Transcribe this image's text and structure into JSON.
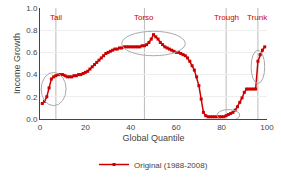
{
  "chart_data": {
    "type": "line",
    "xlabel": "Global Quantile",
    "ylabel": "Income Growth",
    "x": [
      1,
      2,
      3,
      4,
      5,
      6,
      7,
      8,
      9,
      10,
      11,
      12,
      13,
      14,
      15,
      16,
      17,
      18,
      19,
      20,
      21,
      22,
      23,
      24,
      25,
      26,
      27,
      28,
      29,
      30,
      31,
      32,
      33,
      34,
      35,
      36,
      37,
      38,
      39,
      40,
      41,
      42,
      43,
      44,
      45,
      46,
      47,
      48,
      49,
      50,
      51,
      52,
      53,
      54,
      55,
      56,
      57,
      58,
      59,
      60,
      61,
      62,
      63,
      64,
      65,
      66,
      67,
      68,
      69,
      70,
      71,
      72,
      73,
      74,
      75,
      76,
      77,
      78,
      79,
      80,
      81,
      82,
      83,
      84,
      85,
      86,
      87,
      88,
      89,
      90,
      91,
      92,
      93,
      94,
      95,
      96,
      97,
      98,
      99
    ],
    "series": [
      {
        "name": "Original (1988-2008)",
        "color": "#cc0000",
        "marker": "square",
        "values": [
          0.14,
          0.16,
          0.2,
          0.28,
          0.36,
          0.38,
          0.39,
          0.4,
          0.4,
          0.4,
          0.39,
          0.38,
          0.38,
          0.38,
          0.39,
          0.39,
          0.4,
          0.4,
          0.41,
          0.42,
          0.43,
          0.45,
          0.47,
          0.49,
          0.51,
          0.53,
          0.55,
          0.57,
          0.59,
          0.6,
          0.61,
          0.62,
          0.63,
          0.63,
          0.64,
          0.64,
          0.65,
          0.65,
          0.65,
          0.65,
          0.65,
          0.65,
          0.65,
          0.65,
          0.66,
          0.66,
          0.67,
          0.69,
          0.72,
          0.76,
          0.74,
          0.72,
          0.69,
          0.67,
          0.65,
          0.64,
          0.63,
          0.62,
          0.61,
          0.6,
          0.6,
          0.59,
          0.58,
          0.57,
          0.55,
          0.52,
          0.48,
          0.44,
          0.38,
          0.3,
          0.18,
          0.06,
          0.03,
          0.02,
          0.02,
          0.02,
          0.02,
          0.02,
          0.02,
          0.02,
          0.02,
          0.03,
          0.04,
          0.05,
          0.06,
          0.08,
          0.11,
          0.15,
          0.19,
          0.24,
          0.27,
          0.27,
          0.27,
          0.27,
          0.27,
          0.52,
          0.58,
          0.62,
          0.65
        ]
      }
    ],
    "xlim": [
      0,
      100
    ],
    "ylim": [
      0.0,
      1.0
    ],
    "xticks": [
      0,
      20,
      40,
      60,
      80,
      100
    ],
    "yticks": [
      {
        "value": 0,
        "label": "0.0"
      },
      0.2,
      0.4,
      0.6,
      0.8,
      {
        "value": 1,
        "label": "1.0"
      }
    ],
    "grid": "y",
    "legend": "bottom",
    "annotations": [
      {
        "text": "Tail",
        "x": 7,
        "y": 0.975,
        "color": "#cc0000"
      },
      {
        "text": "Torso",
        "x": 46,
        "y": 0.975,
        "color": "#cc0000"
      },
      {
        "text": "Trough",
        "x": 82,
        "y": 0.975,
        "color": "#cc0000"
      },
      {
        "text": "Trunk",
        "x": 96,
        "y": 0.975,
        "color": "#cc0000"
      }
    ],
    "vlines": [
      {
        "x": 7,
        "color": "#bbbbbb"
      },
      {
        "x": 46,
        "color": "#bbbbbb"
      },
      {
        "x": 82,
        "color": "#bbbbbb"
      },
      {
        "x": 96,
        "color": "#bbbbbb"
      }
    ],
    "ellipses": [
      {
        "cx": 6,
        "cy": 0.27,
        "w": 11,
        "h": 0.3,
        "color": "#aaaaaa"
      },
      {
        "cx": 50,
        "cy": 0.68,
        "w": 28,
        "h": 0.22,
        "color": "#aaaaaa"
      },
      {
        "cx": 83,
        "cy": 0.035,
        "w": 10,
        "h": 0.1,
        "color": "#aaaaaa"
      },
      {
        "cx": 96,
        "cy": 0.47,
        "w": 6,
        "h": 0.3,
        "color": "#aaaaaa"
      }
    ]
  }
}
